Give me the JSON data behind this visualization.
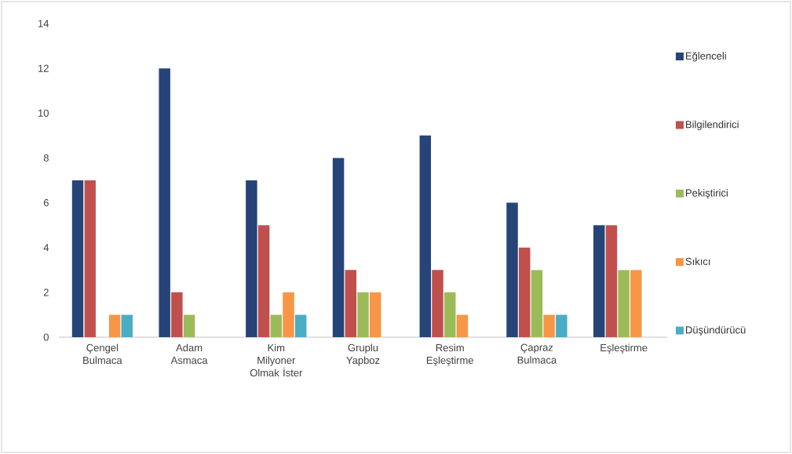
{
  "chart_data": {
    "type": "bar",
    "categories": [
      "Çengel Bulmaca",
      "Adam Asmaca",
      "Kim Milyoner Olmak İster",
      "Gruplu Yapboz",
      "Resim Eşleştirme",
      "Çapraz Bulmaca",
      "Eşleştirme"
    ],
    "series": [
      {
        "name": "Eğlenceli",
        "color": "#264478",
        "values": [
          7,
          12,
          7,
          8,
          9,
          6,
          5
        ]
      },
      {
        "name": "Bilgilendirici",
        "color": "#c0504d",
        "values": [
          7,
          2,
          5,
          3,
          3,
          4,
          5
        ]
      },
      {
        "name": "Pekiştirici",
        "color": "#9bbb59",
        "values": [
          0,
          1,
          1,
          2,
          2,
          3,
          3
        ]
      },
      {
        "name": "Sıkıcı",
        "color": "#f79646",
        "values": [
          1,
          0,
          2,
          2,
          1,
          1,
          3
        ]
      },
      {
        "name": "Düşündürücü",
        "color": "#4bacc6",
        "values": [
          1,
          0,
          1,
          0,
          0,
          1,
          0
        ]
      }
    ],
    "ylim": [
      0,
      14
    ],
    "yticks": [
      0,
      2,
      4,
      6,
      8,
      10,
      12,
      14
    ],
    "grid": false,
    "legend": "right"
  }
}
